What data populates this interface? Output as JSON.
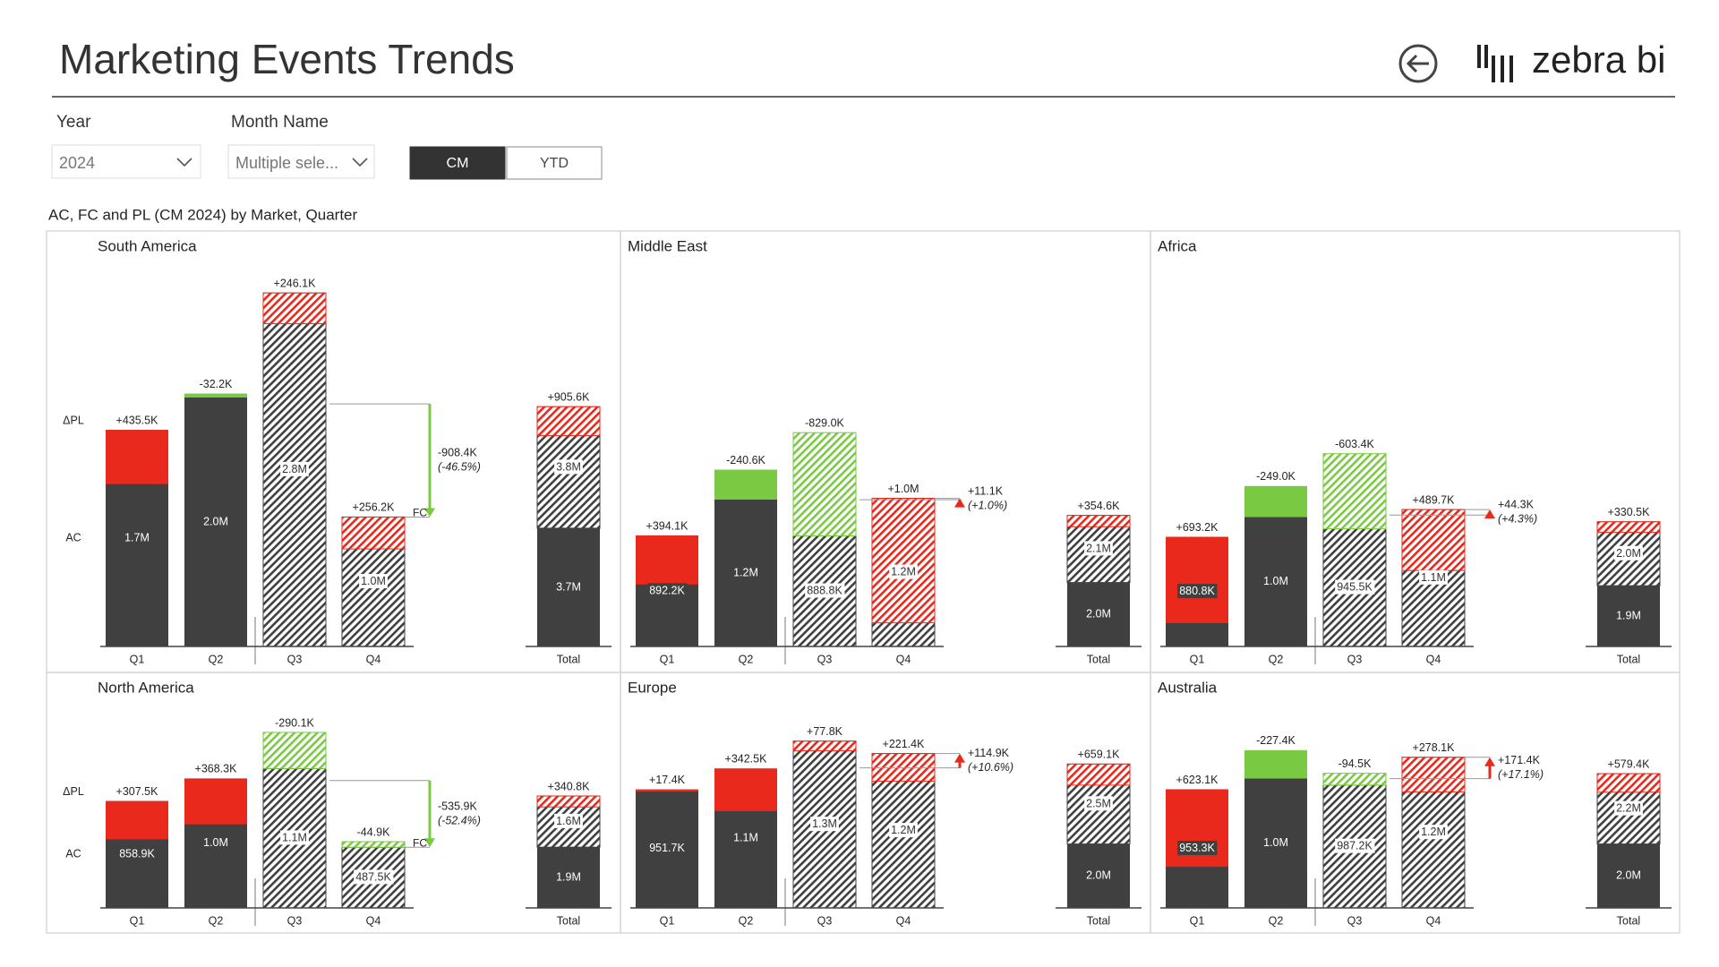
{
  "header": {
    "title": "Marketing Events Trends",
    "logo_text": "zebra bi"
  },
  "filters": {
    "year_label": "Year",
    "year_value": "2024",
    "month_label": "Month Name",
    "month_value": "Multiple sele...",
    "buttons": [
      "CM",
      "YTD"
    ],
    "active_button": 0
  },
  "subtitle": "AC, FC and PL (CM 2024) by Market, Quarter",
  "palette": {
    "ac": "#404040",
    "increase": "#e8291c",
    "decrease": "#7ac943"
  },
  "chart_data": [
    {
      "type": "bar",
      "title": "South America",
      "categories": [
        "Q1",
        "Q2",
        "Q3",
        "Q4"
      ],
      "forecast": [
        false,
        false,
        true,
        true
      ],
      "values": [
        1740000,
        2000000,
        2840000,
        1040000
      ],
      "value_labels": [
        "1.7M",
        "2.0M",
        "2.8M",
        "1.0M"
      ],
      "deltas": [
        435500,
        -32200,
        246100,
        256200
      ],
      "delta_labels": [
        "+435.5K",
        "-32.2K",
        "+246.1K",
        "+256.2K"
      ],
      "total": {
        "label": "Total",
        "values": [
          3700000,
          3800000
        ],
        "value_labels": [
          "3.7M",
          "3.8M"
        ],
        "delta": 905600,
        "delta_label": "+905.6K"
      },
      "annotation": {
        "value": -908400,
        "label": "-908.4K",
        "percent": -46.5,
        "percent_label": "(-46.5%)"
      },
      "reference_label": "FC",
      "row_labels": [
        "ΔPL",
        "AC"
      ]
    },
    {
      "type": "bar",
      "title": "Middle East",
      "categories": [
        "Q1",
        "Q2",
        "Q3",
        "Q4"
      ],
      "forecast": [
        false,
        false,
        true,
        true
      ],
      "values": [
        892200,
        1180000,
        888800,
        1190000
      ],
      "value_labels": [
        "892.2K",
        "1.2M",
        "888.8K",
        "1.2M"
      ],
      "deltas": [
        394100,
        -240600,
        -829000,
        1000000
      ],
      "delta_labels": [
        "+394.1K",
        "-240.6K",
        "-829.0K",
        "+1.0M"
      ],
      "total": {
        "label": "Total",
        "values": [
          2000000,
          2100000
        ],
        "value_labels": [
          "2.0M",
          "2.1M"
        ],
        "delta": 354600,
        "delta_label": "+354.6K"
      },
      "annotation": {
        "value": 11100,
        "label": "+11.1K",
        "percent": 1.0,
        "percent_label": "(+1.0%)"
      }
    },
    {
      "type": "bar",
      "title": "Africa",
      "categories": [
        "Q1",
        "Q2",
        "Q3",
        "Q4"
      ],
      "forecast": [
        false,
        false,
        true,
        true
      ],
      "values": [
        880800,
        1040000,
        945500,
        1100000
      ],
      "value_labels": [
        "880.8K",
        "1.0M",
        "945.5K",
        "1.1M"
      ],
      "deltas": [
        693200,
        -249000,
        -603400,
        489700
      ],
      "delta_labels": [
        "+693.2K",
        "-249.0K",
        "-603.4K",
        "+489.7K"
      ],
      "total": {
        "label": "Total",
        "values": [
          1900000,
          2000000
        ],
        "value_labels": [
          "1.9M",
          "2.0M"
        ],
        "delta": 330500,
        "delta_label": "+330.5K"
      },
      "annotation": {
        "value": 44300,
        "label": "+44.3K",
        "percent": 4.3,
        "percent_label": "(+4.3%)"
      }
    },
    {
      "type": "bar",
      "title": "North America",
      "categories": [
        "Q1",
        "Q2",
        "Q3",
        "Q4"
      ],
      "forecast": [
        false,
        false,
        true,
        true
      ],
      "values": [
        858900,
        1040000,
        1120000,
        487500
      ],
      "value_labels": [
        "858.9K",
        "1.0M",
        "1.1M",
        "487.5K"
      ],
      "deltas": [
        307500,
        368300,
        -290100,
        -44900
      ],
      "delta_labels": [
        "+307.5K",
        "+368.3K",
        "-290.1K",
        "-44.9K"
      ],
      "total": {
        "label": "Total",
        "values": [
          1900000,
          1600000
        ],
        "value_labels": [
          "1.9M",
          "1.6M"
        ],
        "delta": 340800,
        "delta_label": "+340.8K"
      },
      "annotation": {
        "value": -535900,
        "label": "-535.9K",
        "percent": -52.4,
        "percent_label": "(-52.4%)"
      },
      "reference_label": "FC",
      "row_labels": [
        "ΔPL",
        "AC"
      ]
    },
    {
      "type": "bar",
      "title": "Europe",
      "categories": [
        "Q1",
        "Q2",
        "Q3",
        "Q4"
      ],
      "forecast": [
        false,
        false,
        true,
        true
      ],
      "values": [
        951700,
        1120000,
        1340000,
        1240000
      ],
      "value_labels": [
        "951.7K",
        "1.1M",
        "1.3M",
        "1.2M"
      ],
      "deltas": [
        17400,
        342500,
        77800,
        221400
      ],
      "delta_labels": [
        "+17.4K",
        "+342.5K",
        "+77.8K",
        "+221.4K"
      ],
      "total": {
        "label": "Total",
        "values": [
          2000000,
          2500000
        ],
        "value_labels": [
          "2.0M",
          "2.5M"
        ],
        "delta": 659100,
        "delta_label": "+659.1K"
      },
      "annotation": {
        "value": 114900,
        "label": "+114.9K",
        "percent": 10.6,
        "percent_label": "(+10.6%)"
      }
    },
    {
      "type": "bar",
      "title": "Australia",
      "categories": [
        "Q1",
        "Q2",
        "Q3",
        "Q4"
      ],
      "forecast": [
        false,
        false,
        true,
        true
      ],
      "values": [
        953300,
        1040000,
        987200,
        1210000
      ],
      "value_labels": [
        "953.3K",
        "1.0M",
        "987.2K",
        "1.2M"
      ],
      "deltas": [
        623100,
        -227400,
        -94500,
        278100
      ],
      "delta_labels": [
        "+623.1K",
        "-227.4K",
        "-94.5K",
        "+278.1K"
      ],
      "total": {
        "label": "Total",
        "values": [
          2000000,
          2200000
        ],
        "value_labels": [
          "2.0M",
          "2.2M"
        ],
        "delta": 579400,
        "delta_label": "+579.4K"
      },
      "annotation": {
        "value": 171400,
        "label": "+171.4K",
        "percent": 17.1,
        "percent_label": "(+17.1%)"
      }
    }
  ]
}
